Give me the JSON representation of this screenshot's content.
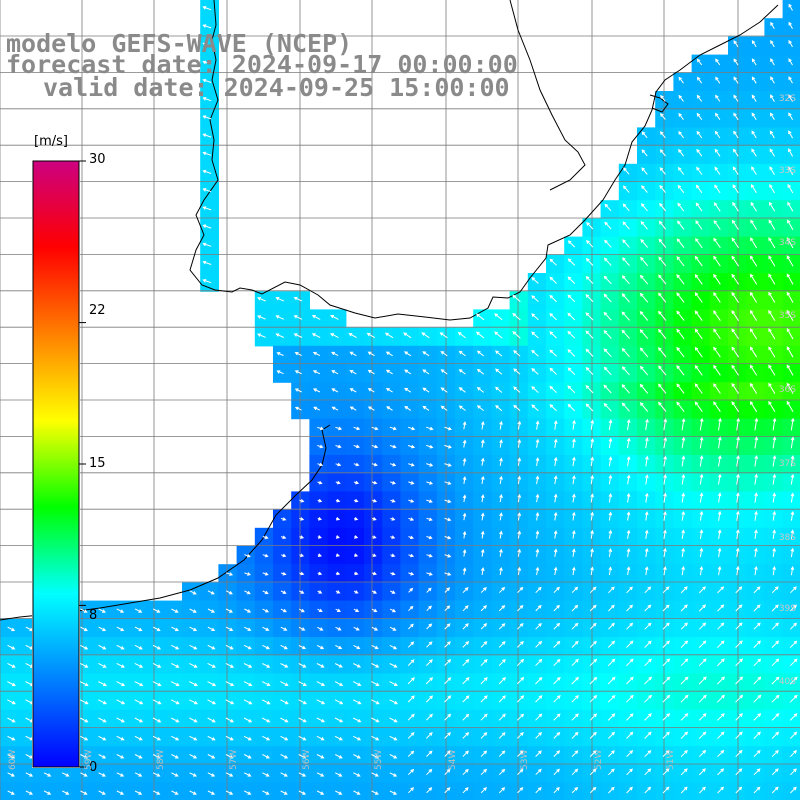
{
  "header": {
    "model": "modelo GEFS-WAVE (NCEP)",
    "forecast": "forecast date: 2024-09-17 00:00:00",
    "valid": "valid date: 2024-09-25 15:00:00"
  },
  "colorbar": {
    "unit": "[m/s]",
    "min": 0,
    "max": 30,
    "ticks": [
      {
        "value": 30,
        "label": "30"
      },
      {
        "value": 22,
        "label": "22"
      },
      {
        "value": 15,
        "label": "15"
      },
      {
        "value": 8,
        "label": "8"
      },
      {
        "value": 0,
        "label": "0"
      }
    ],
    "colors": [
      "#0000ff",
      "#0080ff",
      "#00ffff",
      "#00ff00",
      "#ffff00",
      "#ff8000",
      "#ff0000",
      "#cc0080"
    ]
  },
  "axes": {
    "lat_labels": [
      "32S",
      "33S",
      "34S",
      "35S",
      "36S",
      "37S",
      "38S",
      "39S",
      "40S"
    ],
    "lon_labels": [
      "60W",
      "59W",
      "58W",
      "57W",
      "56W",
      "55W",
      "54W",
      "53W",
      "52W",
      "51W"
    ]
  },
  "map_data": {
    "lon_range": [
      -61,
      -50
    ],
    "lat_range": [
      -41,
      -30.5
    ],
    "gridlines": true,
    "high_wind_center": {
      "lon": -50.5,
      "lat": -34.8,
      "speed": 14
    },
    "low_wind_center": {
      "lon": -56.3,
      "lat": -37.6,
      "speed": 0.5
    }
  }
}
